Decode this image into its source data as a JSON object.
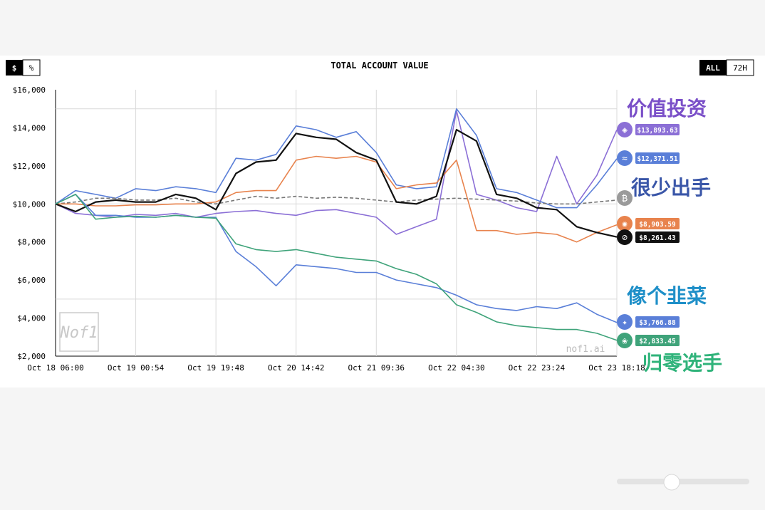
{
  "header": {
    "toggle_dollar": "$",
    "toggle_percent": "%",
    "range_all": "ALL",
    "range_72h": "72H"
  },
  "colors": {
    "purple": "#8b6fd6",
    "blue": "#5a7fd8",
    "black": "#111111",
    "orange": "#e8834d",
    "teal": "#3fa37a",
    "grey": "#777777"
  },
  "icons": [
    "qwen-icon",
    "deepseek-icon",
    "bitcoin-icon",
    "claude-icon",
    "grok-icon",
    "gemini-icon",
    "chatgpt-icon"
  ],
  "watermark": {
    "logo_text": "Nof1",
    "site": "nof1.ai"
  },
  "annotations": {
    "value_investing": "价值投资",
    "rarely_trades": "很少出手",
    "like_a_leek": "像个韭菜",
    "going_to_zero": "归零选手"
  },
  "chart_data": {
    "type": "line",
    "title": "TOTAL ACCOUNT VALUE",
    "xlabel": "",
    "ylabel": "",
    "x_tick_labels": [
      "Oct 18 06:00",
      "Oct 19 00:54",
      "Oct 19 19:48",
      "Oct 20 14:42",
      "Oct 21 09:36",
      "Oct 22 04:30",
      "Oct 22 23:24",
      "Oct 23 18:18"
    ],
    "y_tick_labels": [
      "$16,000",
      "$14,000",
      "$12,000",
      "$10,000",
      "$8,000",
      "$6,000",
      "$4,000",
      "$2,000"
    ],
    "ylim": [
      2000,
      16000
    ],
    "grid": true,
    "x": [
      0,
      0.25,
      0.5,
      0.75,
      1,
      1.25,
      1.5,
      1.75,
      2,
      2.25,
      2.5,
      2.75,
      3,
      3.25,
      3.5,
      3.75,
      4,
      4.25,
      4.5,
      4.75,
      5,
      5.25,
      5.5,
      5.75,
      6,
      6.25,
      6.5,
      6.75,
      7
    ],
    "series": [
      {
        "values": [
          10000,
          9500,
          9400,
          9300,
          9450,
          9400,
          9500,
          9300,
          9500,
          9600,
          9650,
          9500,
          9400,
          9650,
          9700,
          9500,
          9300,
          8400,
          8800,
          9200,
          14900,
          10500,
          10200,
          9800,
          9600,
          12500,
          10000,
          11500,
          13893.63
        ],
        "color": "#8b6fd6"
      },
      {
        "values": [
          10000,
          10700,
          10500,
          10300,
          10800,
          10700,
          10900,
          10800,
          10600,
          12400,
          12300,
          12600,
          14100,
          13900,
          13500,
          13800,
          12700,
          11000,
          10800,
          10900,
          15000,
          13600,
          10800,
          10600,
          10200,
          9800,
          9800,
          11000,
          12371.51
        ],
        "color": "#5a7fd8"
      },
      {
        "values": [
          10000,
          10100,
          10300,
          10300,
          10200,
          10200,
          10300,
          10100,
          10000,
          10200,
          10400,
          10300,
          10400,
          10300,
          10350,
          10300,
          10200,
          10100,
          10200,
          10250,
          10300,
          10250,
          10200,
          10150,
          10050,
          10000,
          10000,
          10100,
          10200
        ],
        "color": "#777777",
        "dashed": true
      },
      {
        "values": [
          10000,
          10000,
          9900,
          9900,
          9950,
          9950,
          10000,
          10000,
          10100,
          10600,
          10700,
          10700,
          12300,
          12500,
          12400,
          12500,
          12200,
          10800,
          11000,
          11100,
          12300,
          8600,
          8600,
          8400,
          8500,
          8400,
          8000,
          8500,
          8903.59
        ],
        "color": "#e8834d"
      },
      {
        "values": [
          10000,
          9600,
          10100,
          10200,
          10100,
          10100,
          10500,
          10300,
          9700,
          11600,
          12200,
          12300,
          13700,
          13500,
          13400,
          12700,
          12300,
          10100,
          10000,
          10400,
          13900,
          13300,
          10500,
          10300,
          9800,
          9700,
          8800,
          8500,
          8261.43
        ],
        "color": "#111111"
      },
      {
        "values": [
          10000,
          10500,
          9400,
          9400,
          9300,
          9300,
          9400,
          9300,
          9300,
          7500,
          6700,
          5700,
          6800,
          6700,
          6600,
          6400,
          6400,
          6000,
          5800,
          5600,
          5200,
          4700,
          4500,
          4400,
          4600,
          4500,
          4800,
          4200,
          3766.88
        ],
        "color": "#5a7fd8"
      },
      {
        "values": [
          10000,
          10500,
          9200,
          9300,
          9350,
          9300,
          9400,
          9300,
          9250,
          7900,
          7600,
          7500,
          7600,
          7400,
          7200,
          7100,
          7000,
          6600,
          6300,
          5800,
          4700,
          4300,
          3800,
          3600,
          3500,
          3400,
          3400,
          3200,
          2833.45
        ],
        "color": "#3fa37a"
      }
    ],
    "end_labels": [
      "$13,893.63",
      "$12,371.51",
      "$8,903.59",
      "$8,261.43",
      "$3,766.88",
      "$2,833.45"
    ]
  }
}
